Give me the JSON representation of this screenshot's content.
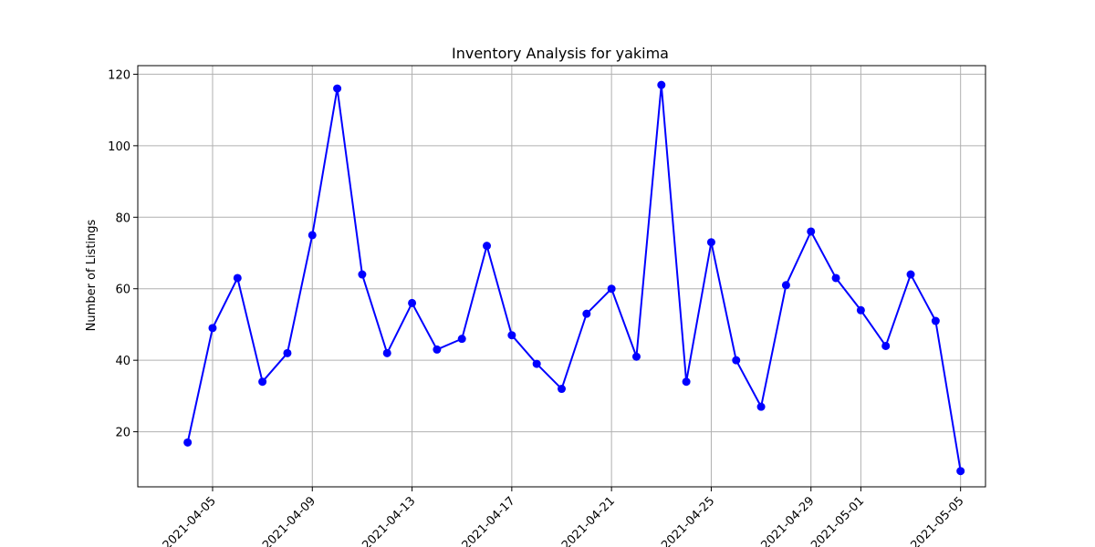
{
  "chart_data": {
    "type": "line",
    "title": "Inventory Analysis for yakima",
    "xlabel": "",
    "ylabel": "Number of Listings",
    "x_tick_labels": [
      "2021-04-05",
      "2021-04-09",
      "2021-04-13",
      "2021-04-17",
      "2021-04-21",
      "2021-04-25",
      "2021-04-29",
      "2021-05-01",
      "2021-05-05"
    ],
    "y_tick_labels": [
      "20",
      "40",
      "60",
      "80",
      "100",
      "120"
    ],
    "xlim": [
      "2021-04-02",
      "2021-05-06"
    ],
    "ylim": [
      4.6,
      122.4
    ],
    "grid": true,
    "color": "#0000ff",
    "series": [
      {
        "x": [
          "2021-04-04",
          "2021-04-05",
          "2021-04-06",
          "2021-04-07",
          "2021-04-08",
          "2021-04-09",
          "2021-04-10",
          "2021-04-11",
          "2021-04-12",
          "2021-04-13",
          "2021-04-14",
          "2021-04-15",
          "2021-04-16",
          "2021-04-17",
          "2021-04-18",
          "2021-04-19",
          "2021-04-20",
          "2021-04-21",
          "2021-04-22",
          "2021-04-23",
          "2021-04-24",
          "2021-04-25",
          "2021-04-26",
          "2021-04-27",
          "2021-04-28",
          "2021-04-29",
          "2021-04-30",
          "2021-05-01",
          "2021-05-02",
          "2021-05-03",
          "2021-05-04",
          "2021-05-05"
        ],
        "values": [
          17,
          49,
          63,
          34,
          42,
          75,
          116,
          64,
          42,
          56,
          43,
          46,
          72,
          47,
          39,
          32,
          53,
          60,
          41,
          117,
          34,
          73,
          40,
          27,
          61,
          76,
          63,
          54,
          44,
          64,
          51,
          9
        ]
      }
    ]
  }
}
